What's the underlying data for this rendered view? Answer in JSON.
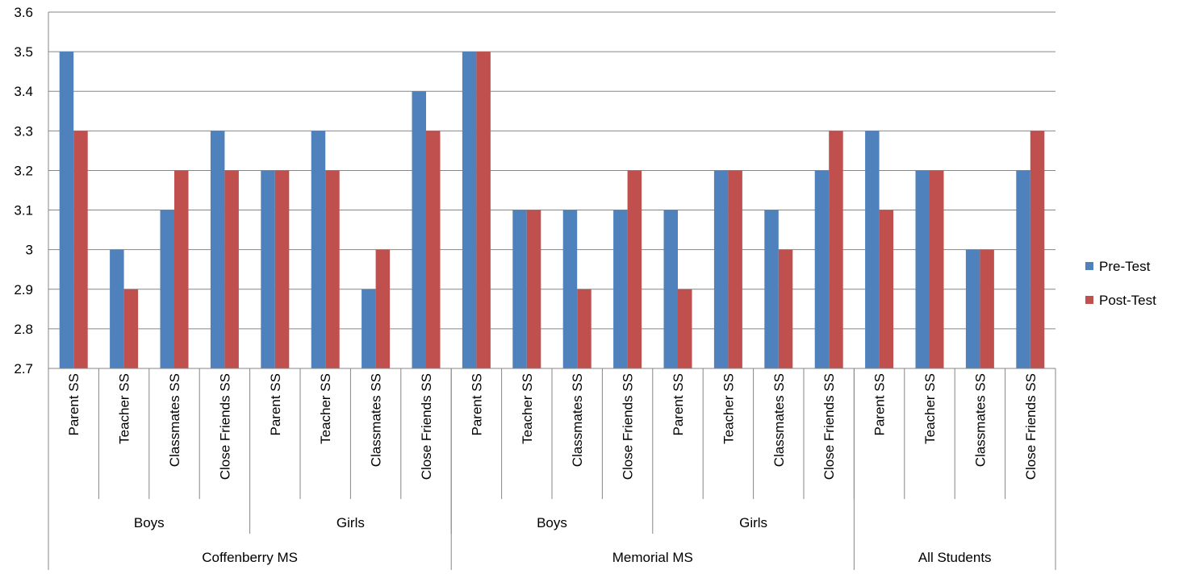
{
  "chart_data": {
    "type": "bar",
    "ylim": [
      2.7,
      3.6
    ],
    "yticks": [
      "2.7",
      "2.8",
      "2.9",
      "3",
      "3.1",
      "3.2",
      "3.3",
      "3.4",
      "3.5",
      "3.6"
    ],
    "grid": true,
    "legend_position": "right",
    "categories": [
      "Parent SS",
      "Teacher SS",
      "Classmates SS",
      "Close Friends SS",
      "Parent SS",
      "Teacher SS",
      "Classmates SS",
      "Close Friends SS",
      "Parent SS",
      "Teacher SS",
      "Classmates SS",
      "Close Friends SS",
      "Parent SS",
      "Teacher SS",
      "Classmates SS",
      "Close Friends SS",
      "Parent SS",
      "Teacher SS",
      "Classmates SS",
      "Close Friends SS"
    ],
    "groups_level2": [
      {
        "label": "Boys",
        "span": 4
      },
      {
        "label": "Girls",
        "span": 4
      },
      {
        "label": "Boys",
        "span": 4
      },
      {
        "label": "Girls",
        "span": 4
      }
    ],
    "groups_level3": [
      {
        "label": "Coffenberry MS",
        "span": 8
      },
      {
        "label": "Memorial MS",
        "span": 8
      },
      {
        "label": "All Students",
        "span": 4
      }
    ],
    "series": [
      {
        "name": "Pre-Test",
        "color": "#4F81BD",
        "values": [
          3.5,
          3.0,
          3.1,
          3.3,
          3.2,
          3.3,
          2.9,
          3.4,
          3.5,
          3.1,
          3.1,
          3.1,
          3.1,
          3.2,
          3.1,
          3.2,
          3.3,
          3.2,
          3.0,
          3.2
        ]
      },
      {
        "name": "Post-Test",
        "color": "#C0504D",
        "values": [
          3.3,
          2.9,
          3.2,
          3.2,
          3.2,
          3.2,
          3.0,
          3.3,
          3.5,
          3.1,
          2.9,
          3.2,
          2.9,
          3.2,
          3.0,
          3.3,
          3.1,
          3.2,
          3.0,
          3.3
        ]
      }
    ]
  }
}
